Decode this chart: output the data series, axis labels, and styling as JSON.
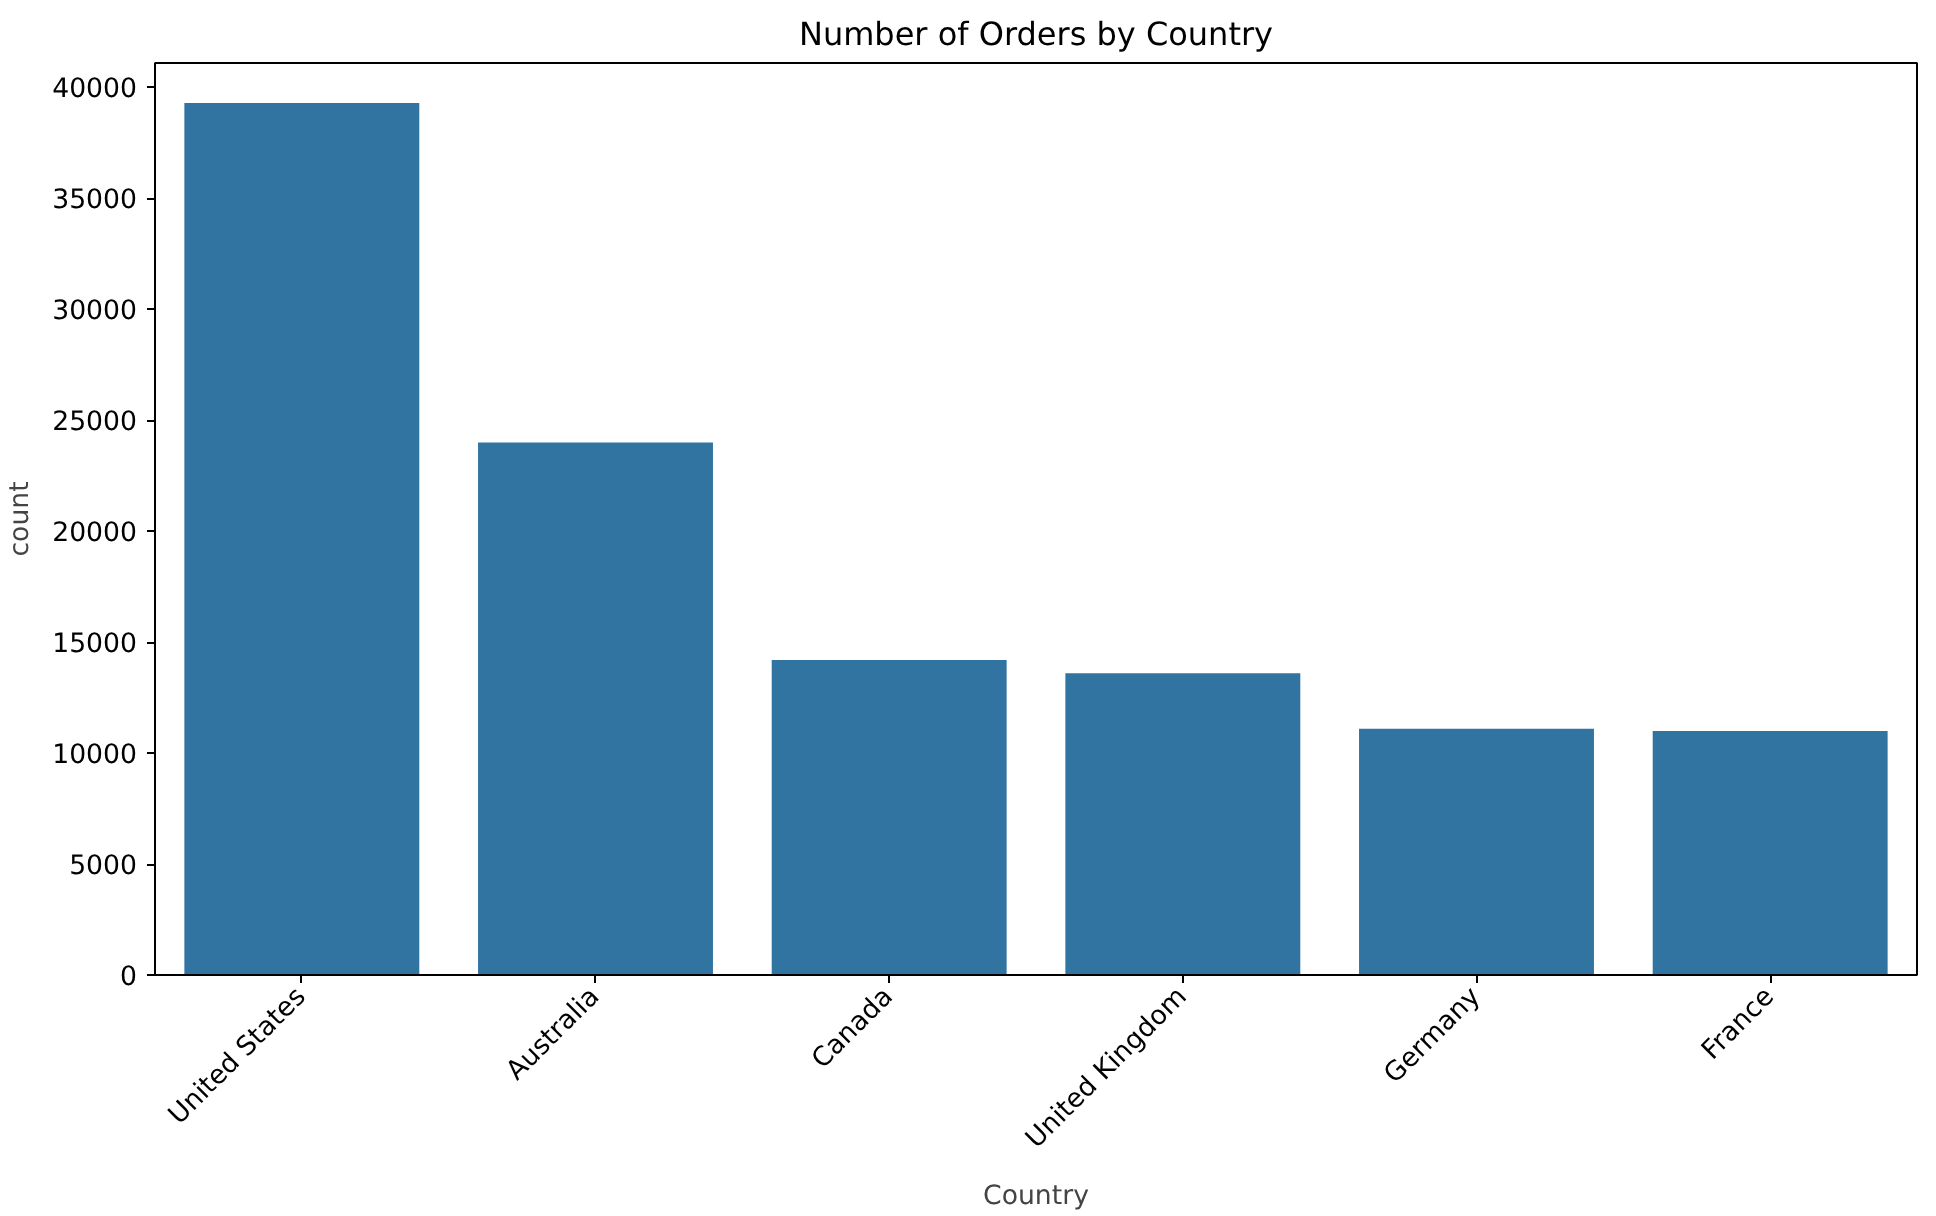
{
  "chart_data": {
    "type": "bar",
    "title": "Number of Orders by Country",
    "xlabel": "Country",
    "ylabel": "count",
    "categories": [
      "United States",
      "Australia",
      "Canada",
      "United Kingdom",
      "Germany",
      "France"
    ],
    "values": [
      39300,
      24000,
      14200,
      13600,
      11100,
      11000
    ],
    "color": "#3274a1",
    "ylim": [
      0,
      41100
    ],
    "yticks": [
      0,
      5000,
      10000,
      15000,
      20000,
      25000,
      30000,
      35000,
      40000
    ],
    "grid": false
  }
}
